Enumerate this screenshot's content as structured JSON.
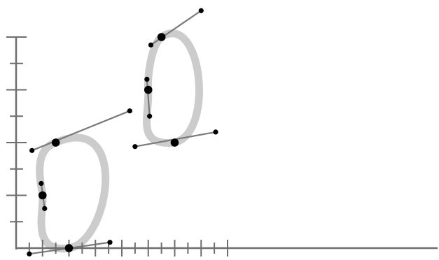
{
  "colors": {
    "axis": "#6e6e6e",
    "curve": "#cccccc",
    "handle_line": "#7a7a7a",
    "point": "#000000",
    "background": "#ffffff"
  },
  "axes": {
    "x_ticks": 16,
    "y_ticks": 8,
    "tick_labels_shown": false
  },
  "curves": [
    {
      "name": "closed-curve-lower-left",
      "anchors": [
        {
          "x": 1.0,
          "y": 2.0,
          "in": {
            "x": 0.95,
            "y": 2.45
          },
          "out": {
            "x": 1.08,
            "y": 1.5
          }
        },
        {
          "x": 2.0,
          "y": 0.0,
          "in": {
            "x": 0.5,
            "y": -0.22
          },
          "out": {
            "x": 3.55,
            "y": 0.22
          }
        },
        {
          "x": 1.5,
          "y": 4.0,
          "in": {
            "x": 4.3,
            "y": 5.2
          },
          "out": {
            "x": 0.6,
            "y": 3.7
          }
        }
      ]
    },
    {
      "name": "closed-curve-upper-right",
      "anchors": [
        {
          "x": 5.0,
          "y": 6.0,
          "in": {
            "x": 5.05,
            "y": 5.0
          },
          "out": {
            "x": 4.95,
            "y": 6.4
          }
        },
        {
          "x": 5.5,
          "y": 8.0,
          "in": {
            "x": 5.1,
            "y": 7.7
          },
          "out": {
            "x": 7.0,
            "y": 9.0
          }
        },
        {
          "x": 6.0,
          "y": 4.0,
          "in": {
            "x": 7.55,
            "y": 4.4
          },
          "out": {
            "x": 4.5,
            "y": 3.85
          }
        }
      ]
    }
  ]
}
